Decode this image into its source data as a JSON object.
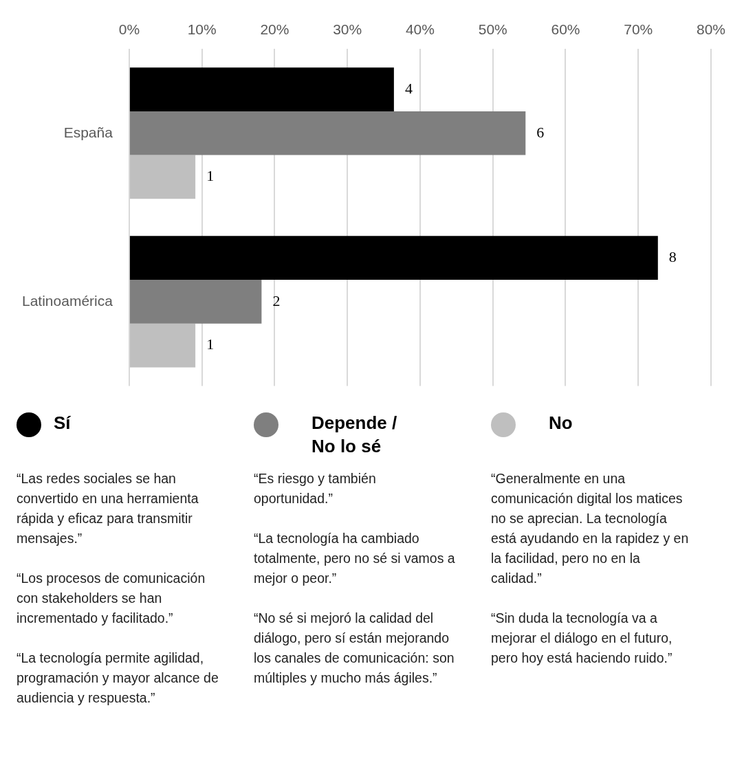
{
  "chart_data": {
    "type": "bar",
    "orientation": "horizontal",
    "categories": [
      "España",
      "Latinoamérica"
    ],
    "series": [
      {
        "name": "Sí",
        "color": "#000000",
        "values": [
          36.4,
          72.7
        ]
      },
      {
        "name": "Depende / No lo sé",
        "color": "#7f7f7f",
        "values": [
          54.5,
          18.2
        ]
      },
      {
        "name": "No",
        "color": "#bfbfbf",
        "values": [
          9.1,
          9.1
        ]
      }
    ],
    "xlim": [
      0,
      80
    ],
    "xticks": [
      {
        "value": 0,
        "label": "0%"
      },
      {
        "value": 10,
        "label": "10%"
      },
      {
        "value": 20,
        "label": "20%"
      },
      {
        "value": 30,
        "label": "30%"
      },
      {
        "value": 40,
        "label": "40%"
      },
      {
        "value": 50,
        "label": "50%"
      },
      {
        "value": 60,
        "label": "60%"
      },
      {
        "value": 70,
        "label": "70%"
      },
      {
        "value": 80,
        "label": "80%"
      }
    ],
    "grid": "x",
    "legend": "bottom",
    "annotations": [
      " “Las redes sociales se han convertido en una herramienta rápida y eficaz para transmitir mensajes.”\n\n“Los procesos de comunicación con stakeholders se han incrementado y facilitado.”\n\n“La tecnología permite agilidad, programación y mayor alcance de audiencia y respuesta.”",
      "“Es riesgo y también oportunidad.”\n\n“La tecnología ha cambiado totalmente, pero no sé si vamos a mejor o peor.”\n\n“No sé si mejoró la calidad del diálogo, pero sí están mejorando los canales de comunicación: son múltiples y mucho más ágiles.”",
      "“Generalmente en una comunicación digital los matices no se aprecian. La tecnología está ayudando en la rapidez y en la facilidad, pero no en la calidad.”\n\n“Sin duda la tecnología va a mejorar el diálogo en el futuro, pero hoy está haciendo ruido.”",
      "4",
      "6",
      "1",
      "8",
      "2",
      "1"
    ]
  }
}
